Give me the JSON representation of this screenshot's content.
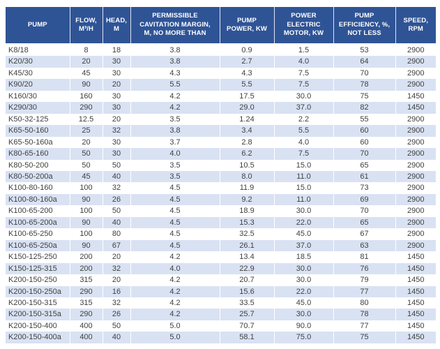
{
  "colors": {
    "header_bg": "#2F5496",
    "header_text": "#FFFFFF",
    "stripe_bg": "#D9E2F3",
    "row_bg": "#FFFFFF",
    "body_text": "#404040"
  },
  "table": {
    "columns": [
      {
        "id": "pump",
        "label": "PUMP",
        "align": "left"
      },
      {
        "id": "flow",
        "label": "FLOW,\nM³/H",
        "align": "center"
      },
      {
        "id": "head",
        "label": "HEAD,\nM",
        "align": "center"
      },
      {
        "id": "margin",
        "label": "PERMISSIBLE\nCAVITATION MARGIN,\nM, NO MORE THAN",
        "align": "center"
      },
      {
        "id": "power",
        "label": "PUMP\nPOWER, KW",
        "align": "center"
      },
      {
        "id": "motor",
        "label": "POWER\nELECTRIC\nMOTOR, KW",
        "align": "center"
      },
      {
        "id": "eff",
        "label": "PUMP\nEFFICIENCY, %,\nNOT LESS",
        "align": "center"
      },
      {
        "id": "speed",
        "label": "SPEED,\nRPM",
        "align": "center"
      }
    ],
    "rows": [
      [
        "K8/18",
        "8",
        "18",
        "3.8",
        "0.9",
        "1.5",
        "53",
        "2900"
      ],
      [
        "K20/30",
        "20",
        "30",
        "3.8",
        "2.7",
        "4.0",
        "64",
        "2900"
      ],
      [
        "K45/30",
        "45",
        "30",
        "4.3",
        "4.3",
        "7.5",
        "70",
        "2900"
      ],
      [
        "K90/20",
        "90",
        "20",
        "5.5",
        "5.5",
        "7.5",
        "78",
        "2900"
      ],
      [
        "K160/30",
        "160",
        "30",
        "4.2",
        "17.5",
        "30.0",
        "75",
        "1450"
      ],
      [
        "K290/30",
        "290",
        "30",
        "4.2",
        "29.0",
        "37.0",
        "82",
        "1450"
      ],
      [
        "K50-32-125",
        "12.5",
        "20",
        "3.5",
        "1.24",
        "2.2",
        "55",
        "2900"
      ],
      [
        "K65-50-160",
        "25",
        "32",
        "3.8",
        "3.4",
        "5.5",
        "60",
        "2900"
      ],
      [
        "K65-50-160a",
        "20",
        "30",
        "3.7",
        "2.8",
        "4.0",
        "60",
        "2900"
      ],
      [
        "K80-65-160",
        "50",
        "30",
        "4.0",
        "6.2",
        "7.5",
        "70",
        "2900"
      ],
      [
        "K80-50-200",
        "50",
        "50",
        "3.5",
        "10.5",
        "15.0",
        "65",
        "2900"
      ],
      [
        "K80-50-200a",
        "45",
        "40",
        "3.5",
        "8.0",
        "11.0",
        "61",
        "2900"
      ],
      [
        "K100-80-160",
        "100",
        "32",
        "4.5",
        "11.9",
        "15.0",
        "73",
        "2900"
      ],
      [
        "K100-80-160a",
        "90",
        "26",
        "4.5",
        "9.2",
        "11.0",
        "69",
        "2900"
      ],
      [
        "K100-65-200",
        "100",
        "50",
        "4.5",
        "18.9",
        "30.0",
        "70",
        "2900"
      ],
      [
        "K100-65-200a",
        "90",
        "40",
        "4.5",
        "15.3",
        "22.0",
        "65",
        "2900"
      ],
      [
        "K100-65-250",
        "100",
        "80",
        "4.5",
        "32.5",
        "45.0",
        "67",
        "2900"
      ],
      [
        "K100-65-250a",
        "90",
        "67",
        "4.5",
        "26.1",
        "37.0",
        "63",
        "2900"
      ],
      [
        "K150-125-250",
        "200",
        "20",
        "4.2",
        "13.4",
        "18.5",
        "81",
        "1450"
      ],
      [
        "K150-125-315",
        "200",
        "32",
        "4.0",
        "22.9",
        "30.0",
        "76",
        "1450"
      ],
      [
        "K200-150-250",
        "315",
        "20",
        "4.2",
        "20.7",
        "30.0",
        "79",
        "1450"
      ],
      [
        "K200-150-250a",
        "290",
        "16",
        "4.2",
        "15.6",
        "22.0",
        "77",
        "1450"
      ],
      [
        "K200-150-315",
        "315",
        "32",
        "4.2",
        "33.5",
        "45.0",
        "80",
        "1450"
      ],
      [
        "K200-150-315a",
        "290",
        "26",
        "4.2",
        "25.7",
        "30.0",
        "78",
        "1450"
      ],
      [
        "K200-150-400",
        "400",
        "50",
        "5.0",
        "70.7",
        "90.0",
        "77",
        "1450"
      ],
      [
        "K200-150-400a",
        "400",
        "40",
        "5.0",
        "58.1",
        "75.0",
        "75",
        "1450"
      ]
    ]
  }
}
